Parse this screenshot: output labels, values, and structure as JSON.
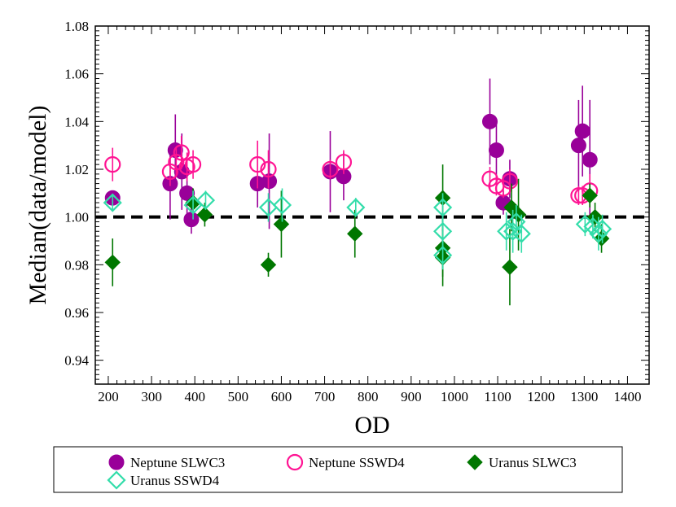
{
  "chart_data": {
    "type": "scatter",
    "title": "",
    "xlabel": "OD",
    "ylabel": "Median(data/model)",
    "xlim": [
      170,
      1450
    ],
    "ylim": [
      0.93,
      1.08
    ],
    "xticks": [
      200,
      300,
      400,
      500,
      600,
      700,
      800,
      900,
      1000,
      1100,
      1200,
      1300,
      1400
    ],
    "yticks": [
      0.94,
      0.96,
      0.98,
      1.0,
      1.02,
      1.04,
      1.06,
      1.08
    ],
    "xtick_labels": [
      "200",
      "300",
      "400",
      "500",
      "600",
      "700",
      "800",
      "900",
      "1000",
      "1100",
      "1200",
      "1300",
      "1400"
    ],
    "ytick_labels": [
      "0.94",
      "0.96",
      "0.98",
      "1.00",
      "1.02",
      "1.04",
      "1.06",
      "1.08"
    ],
    "reference_line": {
      "y": 1.0,
      "style": "dashed",
      "color": "#000000"
    },
    "legend_position": "bottom",
    "series": [
      {
        "name": "Neptune SLWC3",
        "marker": "filled-circle",
        "color": "#990099",
        "points": [
          {
            "x": 210,
            "y": 1.008,
            "err": 0.003
          },
          {
            "x": 343,
            "y": 1.014,
            "err": 0.015
          },
          {
            "x": 355,
            "y": 1.028,
            "err": 0.015
          },
          {
            "x": 370,
            "y": 1.019,
            "err": 0.016
          },
          {
            "x": 382,
            "y": 1.01,
            "err": 0.01
          },
          {
            "x": 392,
            "y": 0.999,
            "err": 0.006
          },
          {
            "x": 545,
            "y": 1.014,
            "err": 0.01
          },
          {
            "x": 572,
            "y": 1.015,
            "err": 0.02
          },
          {
            "x": 713,
            "y": 1.019,
            "err": 0.017
          },
          {
            "x": 744,
            "y": 1.017,
            "err": 0.01
          },
          {
            "x": 1082,
            "y": 1.04,
            "err": 0.018
          },
          {
            "x": 1097,
            "y": 1.028,
            "err": 0.013
          },
          {
            "x": 1113,
            "y": 1.006,
            "err": 0.005
          },
          {
            "x": 1128,
            "y": 1.016,
            "err": 0.008
          },
          {
            "x": 1287,
            "y": 1.03,
            "err": 0.019
          },
          {
            "x": 1296,
            "y": 1.036,
            "err": 0.019
          },
          {
            "x": 1313,
            "y": 1.024,
            "err": 0.025
          }
        ]
      },
      {
        "name": "Neptune SSWD4",
        "marker": "open-circle",
        "color": "#ff1493",
        "points": [
          {
            "x": 210,
            "y": 1.022,
            "err": 0.007
          },
          {
            "x": 343,
            "y": 1.019,
            "err": 0.006
          },
          {
            "x": 357,
            "y": 1.023,
            "err": 0.006
          },
          {
            "x": 369,
            "y": 1.027,
            "err": 0.007
          },
          {
            "x": 382,
            "y": 1.021,
            "err": 0.006
          },
          {
            "x": 396,
            "y": 1.022,
            "err": 0.006
          },
          {
            "x": 545,
            "y": 1.022,
            "err": 0.01
          },
          {
            "x": 570,
            "y": 1.02,
            "err": 0.008
          },
          {
            "x": 713,
            "y": 1.02,
            "err": 0.004
          },
          {
            "x": 744,
            "y": 1.023,
            "err": 0.005
          },
          {
            "x": 1082,
            "y": 1.016,
            "err": 0.005
          },
          {
            "x": 1097,
            "y": 1.013,
            "err": 0.004
          },
          {
            "x": 1113,
            "y": 1.012,
            "err": 0.004
          },
          {
            "x": 1128,
            "y": 1.015,
            "err": 0.005
          },
          {
            "x": 1287,
            "y": 1.009,
            "err": 0.004
          },
          {
            "x": 1296,
            "y": 1.009,
            "err": 0.004
          },
          {
            "x": 1313,
            "y": 1.011,
            "err": 0.007
          }
        ]
      },
      {
        "name": "Uranus SLWC3",
        "marker": "filled-diamond",
        "color": "#007700",
        "points": [
          {
            "x": 210,
            "y": 0.981,
            "err": 0.01
          },
          {
            "x": 396,
            "y": 1.006,
            "err": 0.006
          },
          {
            "x": 423,
            "y": 1.001,
            "err": 0.005
          },
          {
            "x": 570,
            "y": 0.98,
            "err": 0.005
          },
          {
            "x": 600,
            "y": 0.997,
            "err": 0.014
          },
          {
            "x": 770,
            "y": 0.993,
            "err": 0.01
          },
          {
            "x": 973,
            "y": 1.008,
            "err": 0.014
          },
          {
            "x": 973,
            "y": 0.987,
            "err": 0.012
          },
          {
            "x": 973,
            "y": 0.983,
            "err": 0.012
          },
          {
            "x": 1128,
            "y": 0.979,
            "err": 0.016
          },
          {
            "x": 1132,
            "y": 1.004,
            "err": 0.01
          },
          {
            "x": 1148,
            "y": 1.001,
            "err": 0.015
          },
          {
            "x": 1313,
            "y": 1.009,
            "err": 0.005
          },
          {
            "x": 1325,
            "y": 1.0,
            "err": 0.006
          },
          {
            "x": 1340,
            "y": 0.991,
            "err": 0.006
          }
        ]
      },
      {
        "name": "Uranus SSWD4",
        "marker": "open-diamond",
        "color": "#33ddaa",
        "points": [
          {
            "x": 210,
            "y": 1.006,
            "err": 0.003
          },
          {
            "x": 396,
            "y": 1.005,
            "err": 0.006
          },
          {
            "x": 425,
            "y": 1.007,
            "err": 0.004
          },
          {
            "x": 570,
            "y": 1.004,
            "err": 0.006
          },
          {
            "x": 602,
            "y": 1.005,
            "err": 0.007
          },
          {
            "x": 772,
            "y": 1.004,
            "err": 0.004
          },
          {
            "x": 973,
            "y": 1.004,
            "err": 0.006
          },
          {
            "x": 973,
            "y": 0.994,
            "err": 0.007
          },
          {
            "x": 973,
            "y": 0.984,
            "err": 0.006
          },
          {
            "x": 1120,
            "y": 0.994,
            "err": 0.008
          },
          {
            "x": 1135,
            "y": 0.994,
            "err": 0.009
          },
          {
            "x": 1143,
            "y": 0.998,
            "err": 0.007
          },
          {
            "x": 1155,
            "y": 0.993,
            "err": 0.008
          },
          {
            "x": 1302,
            "y": 0.997,
            "err": 0.005
          },
          {
            "x": 1320,
            "y": 0.996,
            "err": 0.005
          },
          {
            "x": 1333,
            "y": 0.993,
            "err": 0.007
          },
          {
            "x": 1342,
            "y": 0.995,
            "err": 0.006
          }
        ]
      }
    ]
  }
}
